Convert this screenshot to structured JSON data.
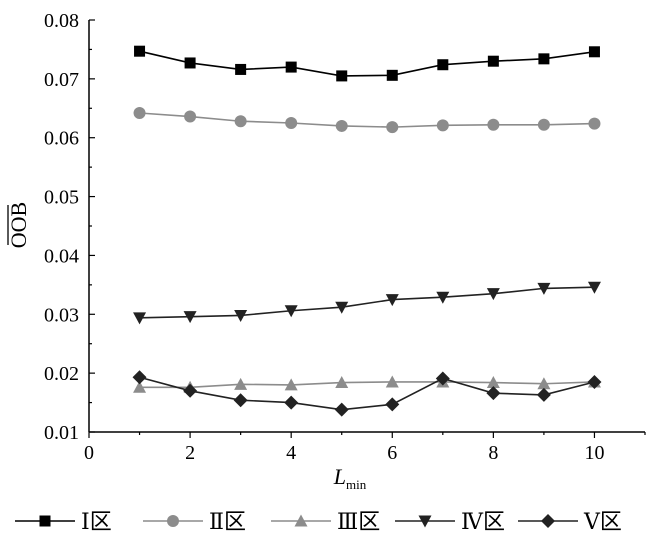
{
  "chart_data": {
    "type": "line",
    "xlabel": "L",
    "xlabel_sub": "min",
    "ylabel": "OOB",
    "xlim": [
      0,
      11
    ],
    "ylim": [
      0.01,
      0.08
    ],
    "x_ticks": [
      "0",
      "2",
      "4",
      "6",
      "8",
      "10"
    ],
    "y_ticks": [
      "0.01",
      "0.02",
      "0.03",
      "0.04",
      "0.05",
      "0.06",
      "0.07",
      "0.08"
    ],
    "grid": false,
    "legend_position": "bottom",
    "x": [
      1,
      2,
      3,
      4,
      5,
      6,
      7,
      8,
      9,
      10
    ],
    "series": [
      {
        "name": "Ⅰ区",
        "marker": "square",
        "color": "#000000",
        "values": [
          0.0747,
          0.0727,
          0.0716,
          0.072,
          0.0705,
          0.0706,
          0.0724,
          0.073,
          0.0734,
          0.0746
        ]
      },
      {
        "name": "Ⅱ区",
        "marker": "circle",
        "color": "#8c8c8c",
        "values": [
          0.0642,
          0.0636,
          0.0628,
          0.0625,
          0.062,
          0.0618,
          0.0621,
          0.0622,
          0.0622,
          0.0624
        ]
      },
      {
        "name": "Ⅲ区",
        "marker": "triangle-up",
        "color": "#8c8c8c",
        "values": [
          0.0176,
          0.0176,
          0.0181,
          0.018,
          0.0184,
          0.0185,
          0.0185,
          0.0184,
          0.0182,
          0.0185
        ]
      },
      {
        "name": "Ⅳ区",
        "marker": "triangle-down",
        "color": "#222222",
        "values": [
          0.0294,
          0.0296,
          0.0298,
          0.0306,
          0.0312,
          0.0325,
          0.0329,
          0.0335,
          0.0344,
          0.0346
        ]
      },
      {
        "name": "Ⅴ区",
        "marker": "diamond",
        "color": "#222222",
        "values": [
          0.0193,
          0.017,
          0.0154,
          0.015,
          0.0138,
          0.0147,
          0.0191,
          0.0166,
          0.0163,
          0.0185
        ]
      }
    ]
  }
}
